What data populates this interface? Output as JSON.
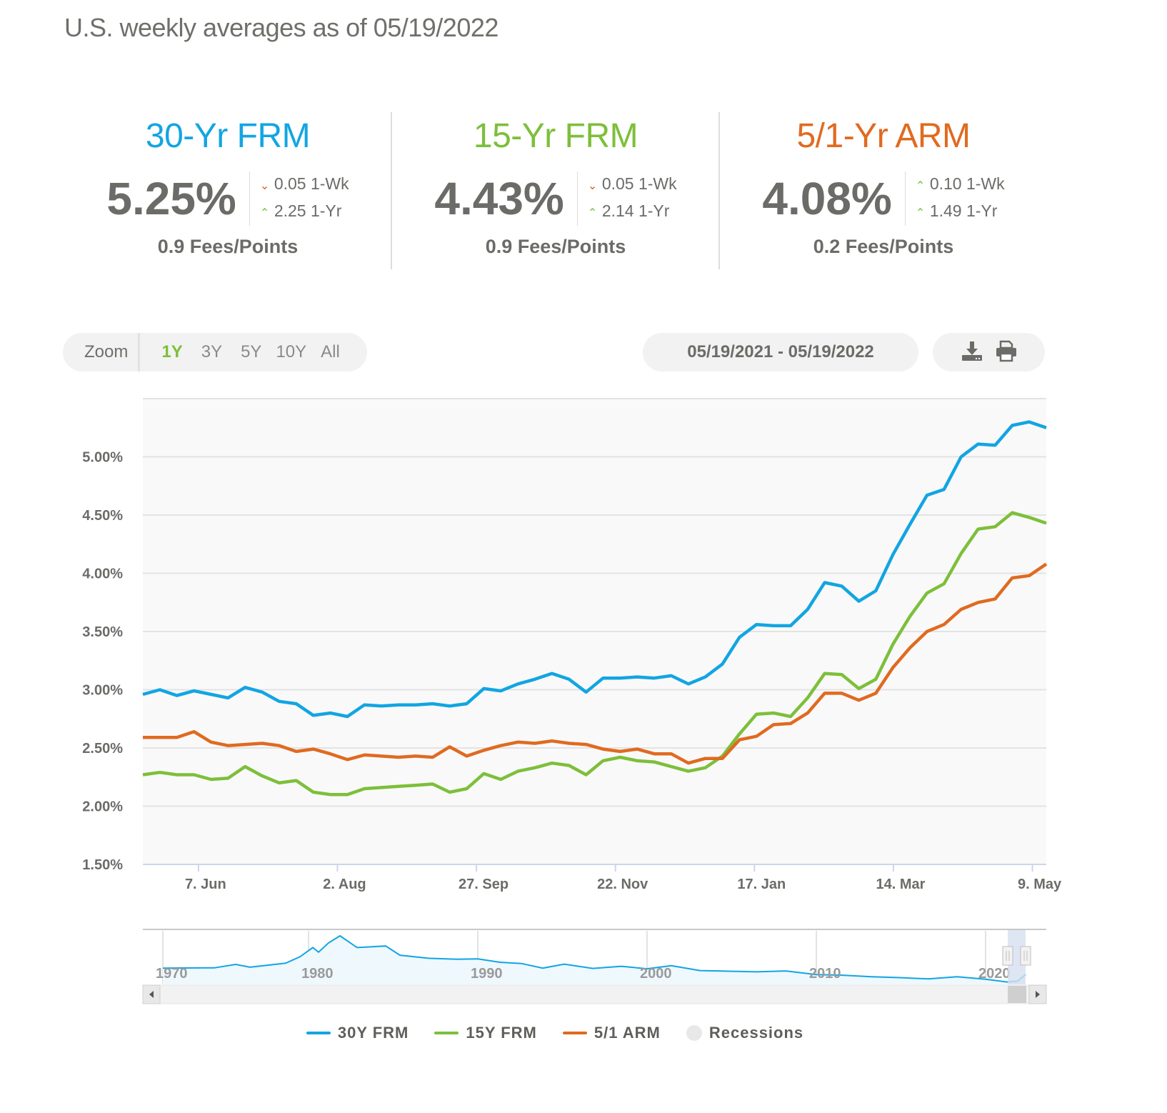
{
  "subtitle": "U.S. weekly averages as of 05/19/2022",
  "cards": [
    {
      "name": "30-Yr FRM",
      "color": "#12a5e2",
      "rate": "5.25%",
      "wk_dir": "down",
      "wk": "0.05 1-Wk",
      "yr_dir": "up",
      "yr": "2.25 1-Yr",
      "fees": "0.9 Fees/Points"
    },
    {
      "name": "15-Yr FRM",
      "color": "#7dbf3a",
      "rate": "4.43%",
      "wk_dir": "down",
      "wk": "0.05 1-Wk",
      "yr_dir": "up",
      "yr": "2.14 1-Yr",
      "fees": "0.9 Fees/Points"
    },
    {
      "name": "5/1-Yr ARM",
      "color": "#e06a20",
      "rate": "4.08%",
      "wk_dir": "up",
      "wk": "0.10 1-Wk",
      "yr_dir": "up",
      "yr": "1.49 1-Yr",
      "fees": "0.2 Fees/Points"
    }
  ],
  "arrows": {
    "up": "^",
    "down": "v"
  },
  "controls": {
    "zoom_label": "Zoom",
    "zoom_options": [
      "1Y",
      "3Y",
      "5Y",
      "10Y",
      "All"
    ],
    "active_zoom": "1Y",
    "date_range": "05/19/2021 - 05/19/2022",
    "download_icon": "download-icon",
    "print_icon": "print-icon"
  },
  "chart_data": {
    "type": "line",
    "title": "",
    "xlabel": "",
    "ylabel": "",
    "ylim": [
      1.5,
      5.5
    ],
    "y_ticks": [
      "1.50%",
      "2.00%",
      "2.50%",
      "3.00%",
      "3.50%",
      "4.00%",
      "4.50%",
      "5.00%"
    ],
    "y_tick_values": [
      1.5,
      2.0,
      2.5,
      3.0,
      3.5,
      4.0,
      4.5,
      5.0
    ],
    "x_ticks": [
      "7. Jun",
      "2. Aug",
      "27. Sep",
      "22. Nov",
      "17. Jan",
      "14. Mar",
      "9. May"
    ],
    "x_tick_weeks": [
      4.2,
      12.2,
      20.2,
      28.2,
      36.2,
      44.2,
      52.2
    ],
    "x_range_weeks": [
      1,
      53
    ],
    "grid": true,
    "legend_position": "bottom",
    "series": [
      {
        "name": "30Y FRM",
        "color": "#12a5e2",
        "values": [
          2.96,
          3.0,
          2.95,
          2.99,
          2.96,
          2.93,
          3.02,
          2.98,
          2.9,
          2.88,
          2.78,
          2.8,
          2.77,
          2.87,
          2.86,
          2.87,
          2.87,
          2.88,
          2.86,
          2.88,
          3.01,
          2.99,
          3.05,
          3.09,
          3.14,
          3.09,
          2.98,
          3.1,
          3.1,
          3.11,
          3.1,
          3.12,
          3.05,
          3.11,
          3.22,
          3.45,
          3.56,
          3.55,
          3.55,
          3.69,
          3.92,
          3.89,
          3.76,
          3.85,
          4.16,
          4.42,
          4.67,
          4.72,
          5.0,
          5.11,
          5.1,
          5.27,
          5.3,
          5.25
        ]
      },
      {
        "name": "15Y FRM",
        "color": "#7dbf3a",
        "values": [
          2.27,
          2.29,
          2.27,
          2.27,
          2.23,
          2.24,
          2.34,
          2.26,
          2.2,
          2.22,
          2.12,
          2.1,
          2.1,
          2.15,
          2.16,
          2.17,
          2.18,
          2.19,
          2.12,
          2.15,
          2.28,
          2.23,
          2.3,
          2.33,
          2.37,
          2.35,
          2.27,
          2.39,
          2.42,
          2.39,
          2.38,
          2.34,
          2.3,
          2.33,
          2.43,
          2.62,
          2.79,
          2.8,
          2.77,
          2.93,
          3.14,
          3.13,
          3.01,
          3.09,
          3.39,
          3.63,
          3.83,
          3.91,
          4.17,
          4.38,
          4.4,
          4.52,
          4.48,
          4.43
        ]
      },
      {
        "name": "5/1 ARM",
        "color": "#e06a20",
        "values": [
          2.59,
          2.59,
          2.59,
          2.64,
          2.55,
          2.52,
          2.53,
          2.54,
          2.52,
          2.47,
          2.49,
          2.45,
          2.4,
          2.44,
          2.43,
          2.42,
          2.43,
          2.42,
          2.51,
          2.43,
          2.48,
          2.52,
          2.55,
          2.54,
          2.56,
          2.54,
          2.53,
          2.49,
          2.47,
          2.49,
          2.45,
          2.45,
          2.37,
          2.41,
          2.41,
          2.57,
          2.6,
          2.7,
          2.71,
          2.8,
          2.97,
          2.97,
          2.91,
          2.97,
          3.19,
          3.36,
          3.5,
          3.56,
          3.69,
          3.75,
          3.78,
          3.96,
          3.98,
          4.08
        ]
      }
    ],
    "navigator": {
      "x_ticks": [
        "1970",
        "1980",
        "1990",
        "2000",
        "2010",
        "2020"
      ],
      "series_name": "30Y FRM"
    }
  },
  "legend": [
    {
      "label": "30Y FRM",
      "color": "#12a5e2",
      "type": "line"
    },
    {
      "label": "15Y FRM",
      "color": "#7dbf3a",
      "type": "line"
    },
    {
      "label": "5/1 ARM",
      "color": "#e06a20",
      "type": "line"
    },
    {
      "label": "Recessions",
      "color": "#e8e8e8",
      "type": "dot"
    }
  ]
}
